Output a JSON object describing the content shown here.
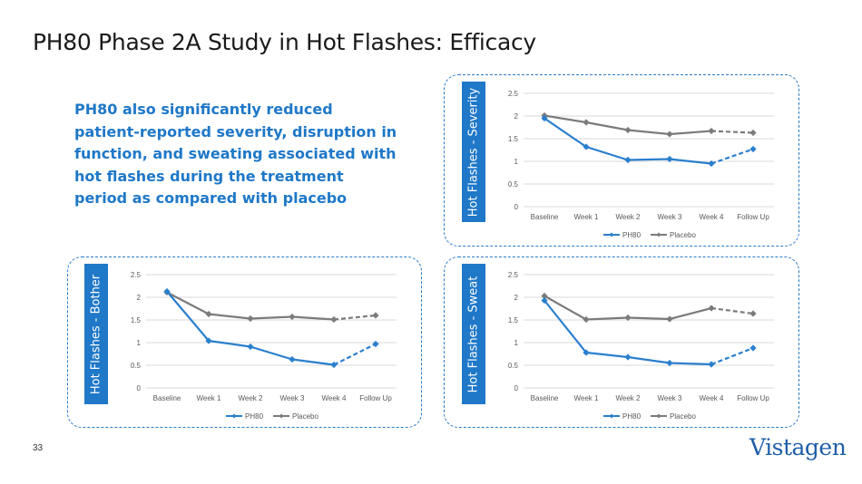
{
  "slide": {
    "title": "PH80 Phase 2A Study in Hot Flashes: Efficacy",
    "summary": "PH80 also significantly reduced patient-reported severity, disruption in function, and sweating associated with hot flashes during the treatment period as compared with placebo",
    "page_number": "33",
    "logo": "Vistagen"
  },
  "panels": {
    "severity_label": "Hot Flashes - Severity",
    "bother_label": "Hot Flashes - Bother",
    "sweat_label": "Hot Flashes - Sweat"
  },
  "colors": {
    "ph80": "#2a7fce",
    "placebo": "#7b7b7b",
    "accent": "#1f78c8"
  },
  "chart_data": [
    {
      "type": "line",
      "categories": [
        "Baseline",
        "Week 1",
        "Week 2",
        "Week 3",
        "Week 4",
        "Follow Up"
      ],
      "series": [
        {
          "name": "PH80",
          "values": [
            1.95,
            1.32,
            1.03,
            1.05,
            0.95,
            1.27
          ]
        },
        {
          "name": "Placebo",
          "values": [
            2.01,
            1.86,
            1.69,
            1.6,
            1.67,
            1.63
          ]
        }
      ],
      "ylim": [
        0,
        2.5
      ],
      "yticks": [
        "0",
        "0.5",
        "1",
        "1.5",
        "2",
        "2.5"
      ],
      "grid": true,
      "legend": "bottom",
      "dashed_last_segment": true
    },
    {
      "type": "line",
      "categories": [
        "Baseline",
        "Week 1",
        "Week 2",
        "Week 3",
        "Week 4",
        "Follow Up"
      ],
      "series": [
        {
          "name": "PH80",
          "values": [
            2.13,
            1.04,
            0.91,
            0.63,
            0.51,
            0.97
          ]
        },
        {
          "name": "Placebo",
          "values": [
            2.11,
            1.63,
            1.53,
            1.57,
            1.51,
            1.6
          ]
        }
      ],
      "ylim": [
        0,
        2.5
      ],
      "yticks": [
        "0",
        "0.5",
        "1",
        "1.5",
        "2",
        "2.5"
      ],
      "grid": true,
      "legend": "bottom",
      "dashed_last_segment": true
    },
    {
      "type": "line",
      "categories": [
        "Baseline",
        "Week 1",
        "Week 2",
        "Week 3",
        "Week 4",
        "Follow Up"
      ],
      "series": [
        {
          "name": "PH80",
          "values": [
            1.93,
            0.78,
            0.68,
            0.55,
            0.52,
            0.88
          ]
        },
        {
          "name": "Placebo",
          "values": [
            2.03,
            1.51,
            1.55,
            1.52,
            1.76,
            1.64
          ]
        }
      ],
      "ylim": [
        0,
        2.5
      ],
      "yticks": [
        "0",
        "0.5",
        "1",
        "1.5",
        "2",
        "2.5"
      ],
      "grid": true,
      "legend": "bottom",
      "dashed_last_segment": true
    }
  ]
}
